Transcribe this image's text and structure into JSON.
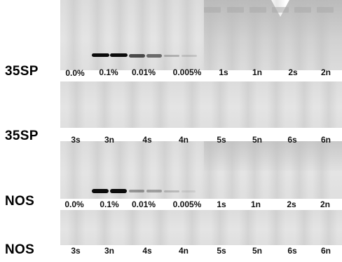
{
  "rows": [
    {
      "label": "35SP",
      "lanes": [
        "0.0%",
        "0.1%",
        "0.01%",
        "0.005%",
        "1s",
        "1n",
        "2s",
        "2n"
      ],
      "band_intensity": [
        0,
        1.0,
        0.55,
        0.15,
        0,
        0,
        0,
        0
      ]
    },
    {
      "label": "35SP",
      "lanes": [
        "3s",
        "3n",
        "4s",
        "4n",
        "5s",
        "5n",
        "6s",
        "6n"
      ]
    },
    {
      "label": "NOS",
      "lanes": [
        "0.0%",
        "0.1%",
        "0.01%",
        "0.005%",
        "1s",
        "1n",
        "2s",
        "2n"
      ],
      "band_intensity": [
        0,
        1.0,
        0.45,
        0.12,
        0,
        0,
        0,
        0
      ]
    },
    {
      "label": "NOS",
      "lanes": [
        "3s",
        "3n",
        "4s",
        "4n",
        "5s",
        "5n",
        "6s",
        "6n"
      ]
    }
  ]
}
